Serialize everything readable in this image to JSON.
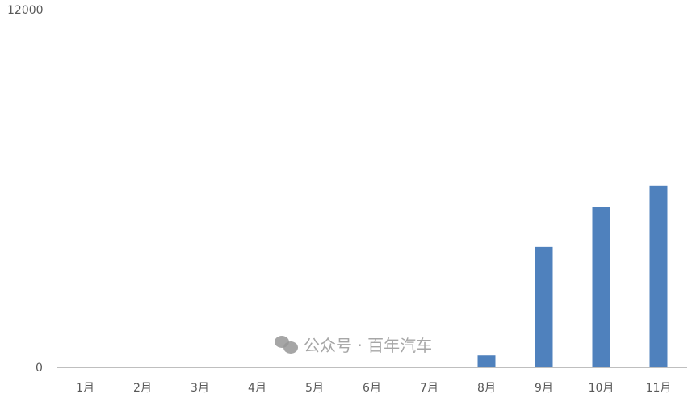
{
  "chart_data": {
    "type": "bar",
    "title": "",
    "xlabel": "",
    "ylabel": "",
    "categories": [
      "1月",
      "2月",
      "3月",
      "4月",
      "5月",
      "6月",
      "7月",
      "8月",
      "9月",
      "10月",
      "11月"
    ],
    "values": [
      0,
      0,
      0,
      0,
      0,
      0,
      0,
      400,
      4040,
      5390,
      6100
    ],
    "ylim": [
      0,
      12000
    ],
    "yticks": [
      "0",
      "12000"
    ],
    "grid": false,
    "legend": "none",
    "bar_color": "#4f81bd",
    "axis_color": "#bfbfbf"
  },
  "watermark": {
    "text": "公众号 · 百年汽车",
    "icon": "wechat-icon"
  }
}
